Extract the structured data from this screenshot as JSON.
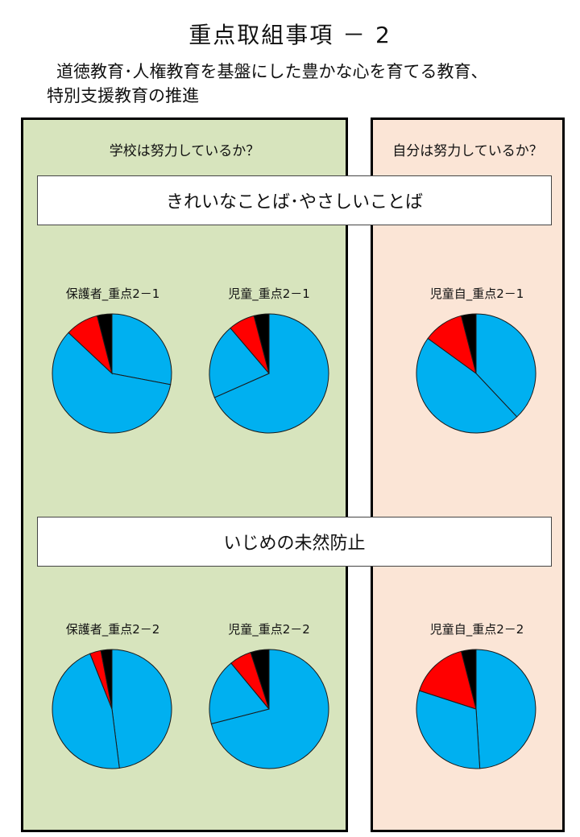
{
  "page": {
    "title": "重点取組事項 － 2",
    "subtitle_line1": "道徳教育･人権教育を基盤にした豊かな心を育てる教育、",
    "subtitle_line2": "特別支援教育の推進"
  },
  "panels": {
    "school": {
      "heading": "学校は努力しているか？"
    },
    "self": {
      "heading": "自分は努力しているか？"
    }
  },
  "banners": {
    "b1": "きれいなことば･やさしいことば",
    "b2": "いじめの未然防止"
  },
  "colors": {
    "blue": "#00b0f0",
    "red": "#ff0000",
    "black": "#000000"
  },
  "chart_data": [
    {
      "id": "c1",
      "type": "pie",
      "title": "保護者_重点2－1",
      "values": [
        28,
        59,
        9,
        4
      ]
    },
    {
      "id": "c2",
      "type": "pie",
      "title": "児童_重点2－1",
      "values": [
        67,
        20,
        7,
        4
      ]
    },
    {
      "id": "c3",
      "type": "pie",
      "title": "児童自_重点2－1",
      "values": [
        38,
        47,
        11,
        4
      ]
    },
    {
      "id": "c4",
      "type": "pie",
      "title": "保護者_重点2－2",
      "values": [
        48,
        46,
        3,
        3
      ]
    },
    {
      "id": "c5",
      "type": "pie",
      "title": "児童_重点2－2",
      "values": [
        71,
        18,
        6,
        5
      ]
    },
    {
      "id": "c6",
      "type": "pie",
      "title": "児童自_重点2－2",
      "values": [
        49,
        31,
        16,
        4
      ]
    }
  ]
}
